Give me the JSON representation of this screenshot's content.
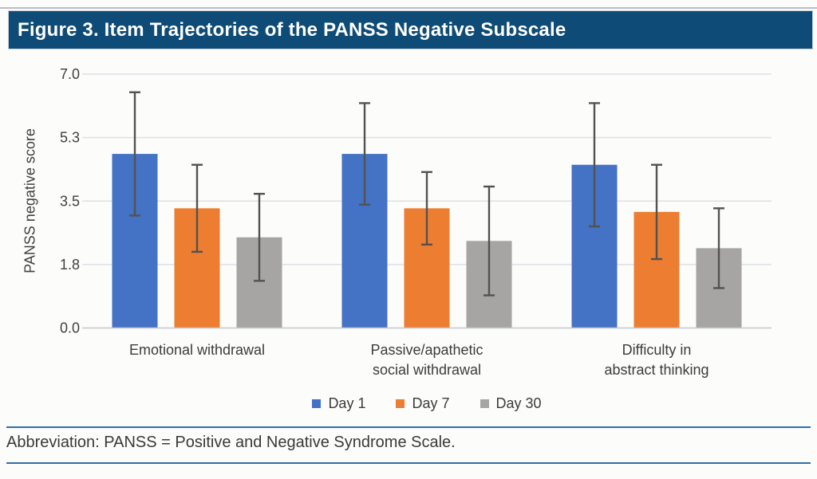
{
  "figure": {
    "title": "Figure 3. Item Trajectories of the PANSS Negative Subscale",
    "footnote": "Abbreviation: PANSS = Positive and Negative Syndrome Scale."
  },
  "colors": {
    "title_bar": "#0e4b76",
    "accent_rule": "#2e6ea6",
    "gridline": "#dce0e7",
    "axis_line": "#c3c9d1",
    "error_bar": "#525252",
    "day1_blue": "#4472c4",
    "day7_orange": "#ed7d31",
    "day30_gray": "#a6a5a3"
  },
  "chart_data": {
    "type": "bar",
    "title": "",
    "xlabel": "",
    "ylabel": "PANSS negative score",
    "ylim": [
      0,
      7
    ],
    "grid": true,
    "legend_position": "bottom",
    "yticks": [
      {
        "label": "7.0",
        "value": 7.0
      },
      {
        "label": "5.3",
        "value": 5.25
      },
      {
        "label": "3.5",
        "value": 3.5
      },
      {
        "label": "1.8",
        "value": 1.75
      },
      {
        "label": "0.0",
        "value": 0.0
      }
    ],
    "categories": [
      "Emotional withdrawal",
      "Passive/apathetic\nsocial withdrawal",
      "Difficulty in\nabstract thinking"
    ],
    "series": [
      {
        "name": "Day 1",
        "color": "#4472c4",
        "values": [
          4.8,
          4.8,
          4.5
        ],
        "error_low": [
          3.1,
          3.4,
          2.8
        ],
        "error_high": [
          6.5,
          6.2,
          6.2
        ]
      },
      {
        "name": "Day 7",
        "color": "#ed7d31",
        "values": [
          3.3,
          3.3,
          3.2
        ],
        "error_low": [
          2.1,
          2.3,
          1.9
        ],
        "error_high": [
          4.5,
          4.3,
          4.5
        ]
      },
      {
        "name": "Day 30",
        "color": "#a6a5a3",
        "values": [
          2.5,
          2.4,
          2.2
        ],
        "error_low": [
          1.3,
          0.9,
          1.1
        ],
        "error_high": [
          3.7,
          3.9,
          3.3
        ]
      }
    ]
  }
}
